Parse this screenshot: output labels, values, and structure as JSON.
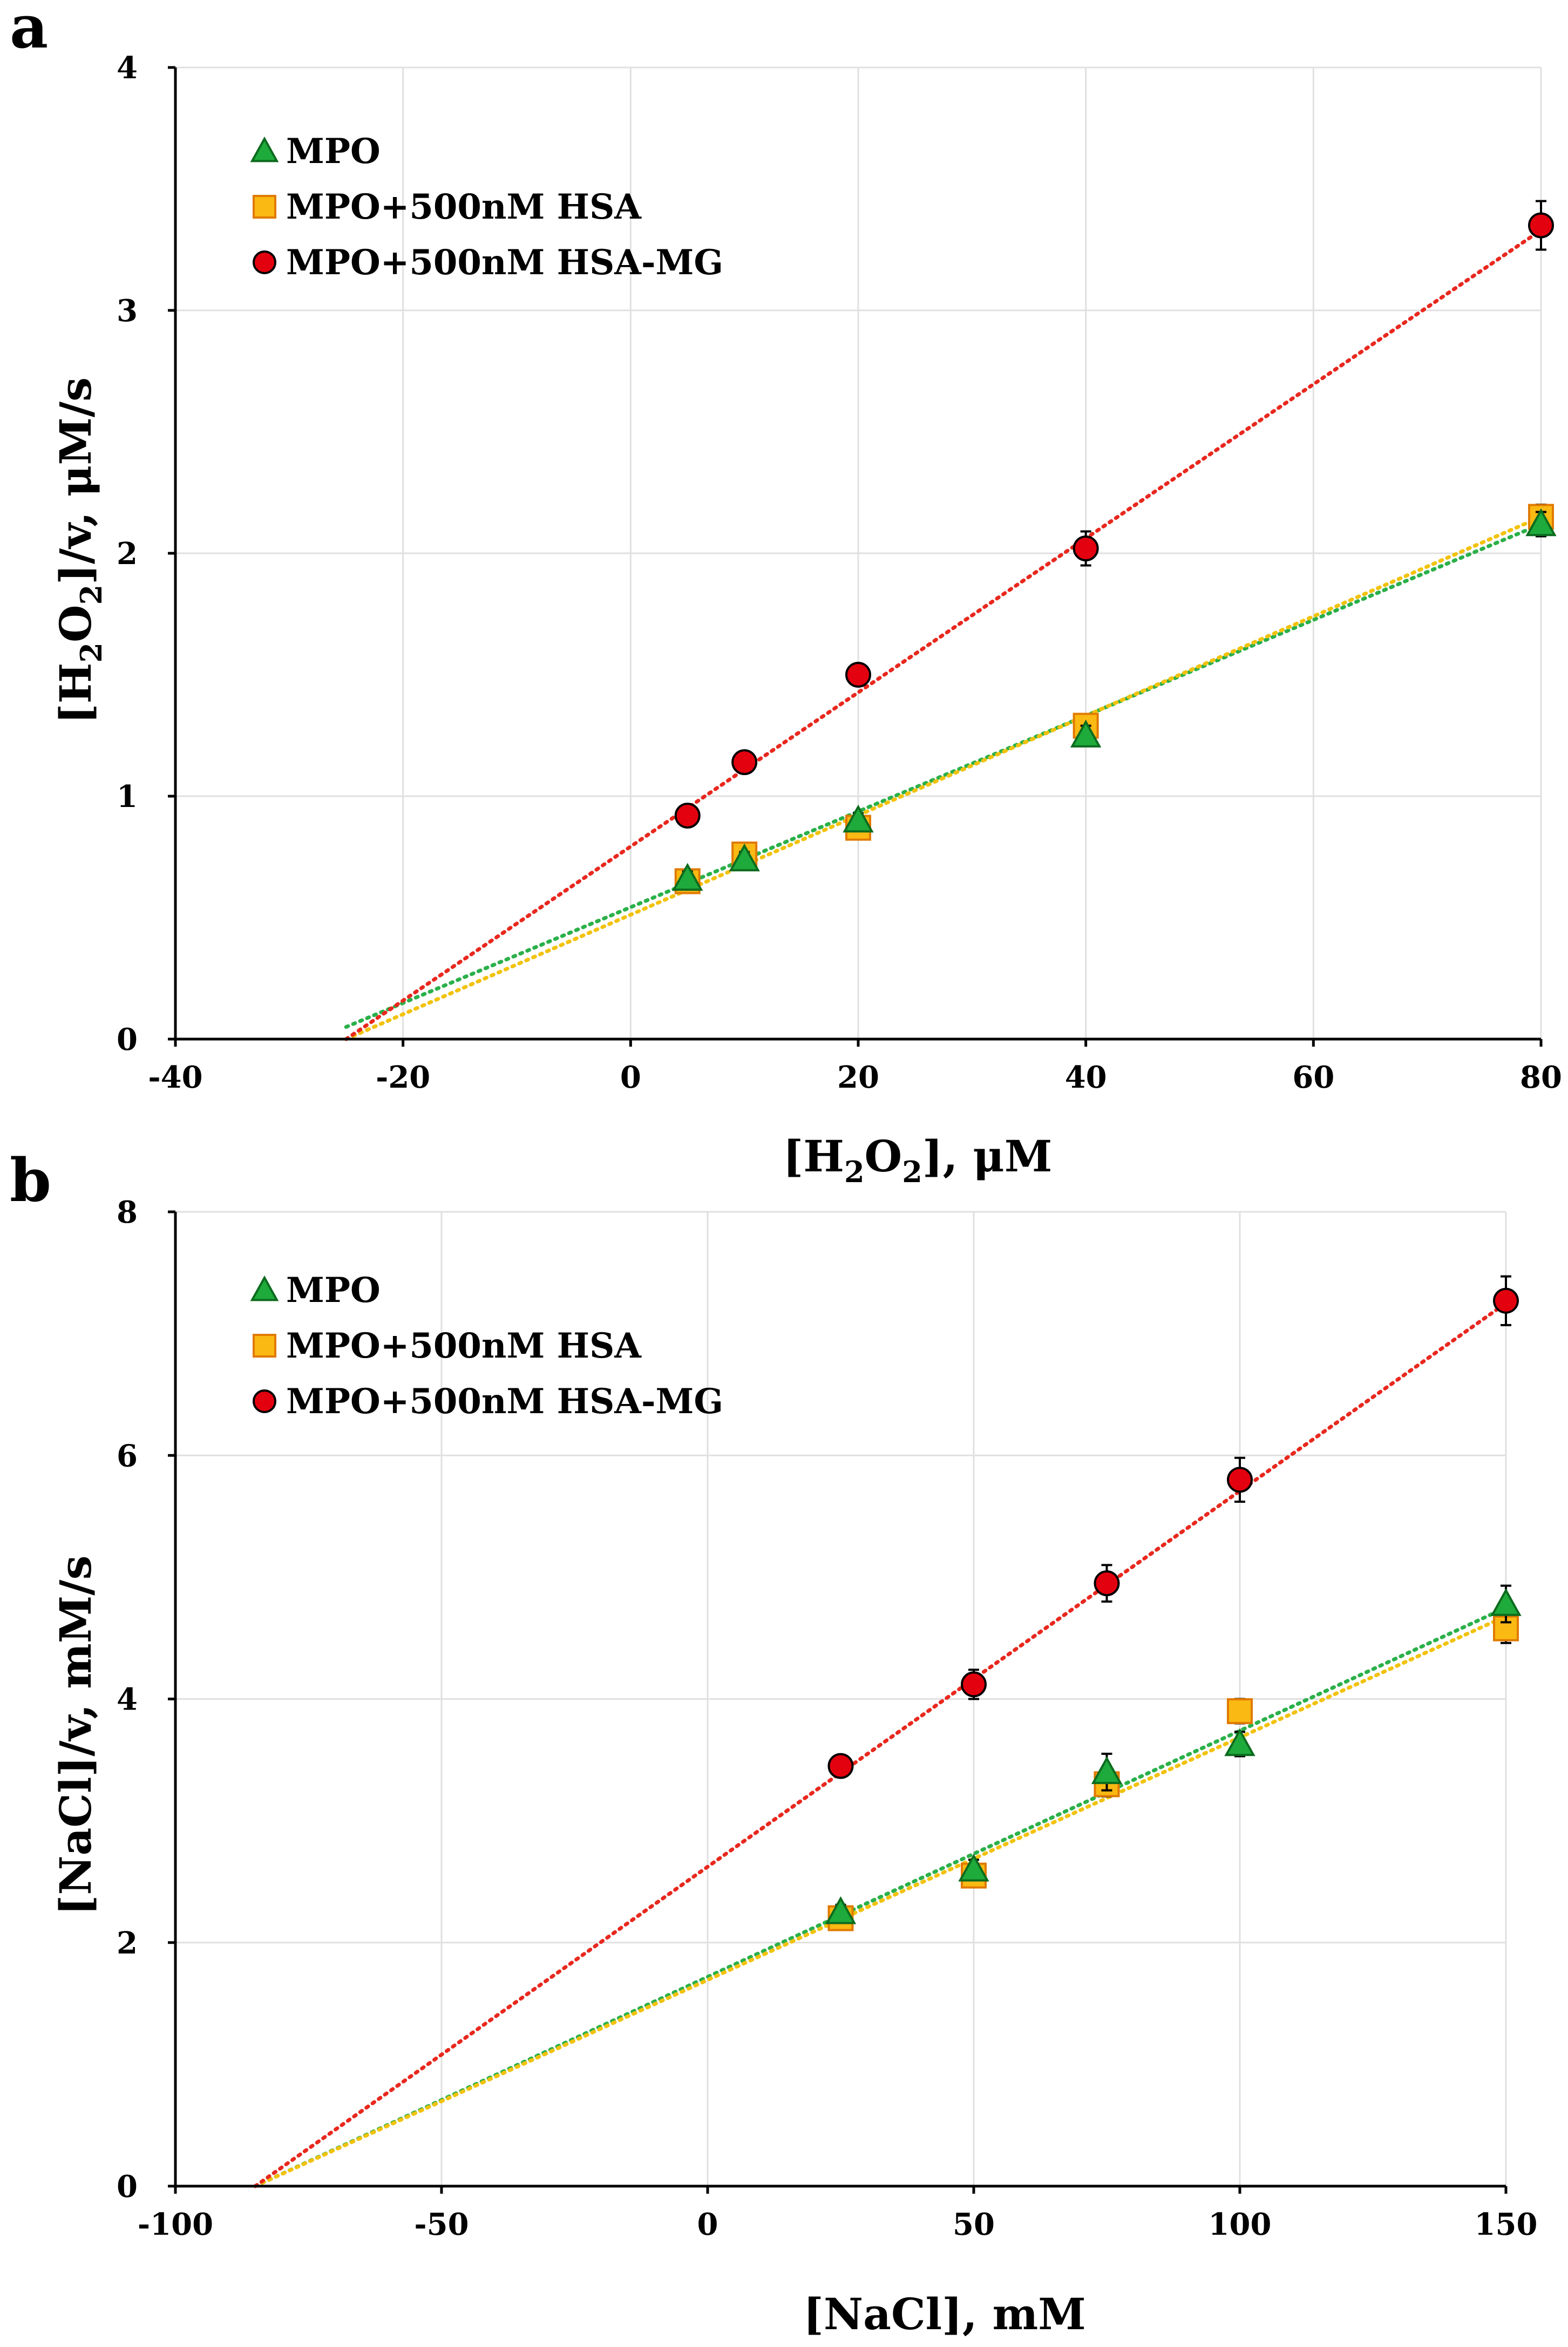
{
  "chart_data": [
    {
      "panel": "a",
      "type": "scatter",
      "xlabel": "[H2O2], μM",
      "ylabel": "[H2O2]/v, μM/s",
      "xlim": [
        -40,
        80
      ],
      "ylim": [
        0,
        4
      ],
      "xticks": [
        -40,
        -20,
        0,
        20,
        40,
        60,
        80
      ],
      "yticks": [
        0,
        1,
        2,
        3,
        4
      ],
      "grid": true,
      "legend_position": "top-left",
      "series": [
        {
          "name": "MPO",
          "marker": "triangle",
          "color": "#1faa3c",
          "trend_color": "#2bb04a",
          "x": [
            5,
            10,
            20,
            40,
            80
          ],
          "y": [
            0.66,
            0.74,
            0.9,
            1.25,
            2.12
          ],
          "err": [
            0.03,
            0.03,
            0.03,
            0.04,
            0.05
          ],
          "trend": {
            "x": [
              -25,
              80
            ],
            "y": [
              0.05,
              2.12
            ]
          }
        },
        {
          "name": "MPO+500nM HSA",
          "marker": "square",
          "color": "#fbb913",
          "trend_color": "#f2c20d",
          "x": [
            5,
            10,
            20,
            40,
            80
          ],
          "y": [
            0.65,
            0.76,
            0.87,
            1.29,
            2.15
          ],
          "err": [
            0.03,
            0.03,
            0.03,
            0.04,
            0.05
          ],
          "trend": {
            "x": [
              -25,
              80
            ],
            "y": [
              0.0,
              2.15
            ]
          }
        },
        {
          "name": "MPO+500nM HSA-MG",
          "marker": "circle",
          "color": "#e3000f",
          "trend_color": "#e8281e",
          "x": [
            5,
            10,
            20,
            40,
            80
          ],
          "y": [
            0.92,
            1.14,
            1.5,
            2.02,
            3.35
          ],
          "err": [
            0.03,
            0.03,
            0.03,
            0.07,
            0.1
          ],
          "trend": {
            "x": [
              -25,
              80
            ],
            "y": [
              0.0,
              3.33
            ]
          }
        }
      ]
    },
    {
      "panel": "b",
      "type": "scatter",
      "xlabel": "[NaCl], mM",
      "ylabel": "[NaCl]/v, mM/s",
      "xlim": [
        -100,
        150
      ],
      "ylim": [
        0,
        8
      ],
      "xticks": [
        -100,
        -50,
        0,
        50,
        100,
        150
      ],
      "yticks": [
        0,
        2,
        4,
        6,
        8
      ],
      "grid": true,
      "legend_position": "top-left",
      "series": [
        {
          "name": "MPO",
          "marker": "triangle",
          "color": "#1faa3c",
          "trend_color": "#2bb04a",
          "x": [
            25,
            50,
            75,
            100,
            150
          ],
          "y": [
            2.25,
            2.6,
            3.4,
            3.63,
            4.78
          ],
          "err": [
            0.06,
            0.08,
            0.15,
            0.1,
            0.15
          ],
          "trend": {
            "x": [
              -85,
              150
            ],
            "y": [
              0.0,
              4.75
            ]
          }
        },
        {
          "name": "MPO+500nM HSA",
          "marker": "square",
          "color": "#fbb913",
          "trend_color": "#f2c20d",
          "x": [
            25,
            50,
            75,
            100,
            150
          ],
          "y": [
            2.2,
            2.55,
            3.3,
            3.9,
            4.58
          ],
          "err": [
            0.06,
            0.08,
            0.1,
            0.1,
            0.12
          ],
          "trend": {
            "x": [
              -85,
              150
            ],
            "y": [
              0.0,
              4.68
            ]
          }
        },
        {
          "name": "MPO+500nM HSA-MG",
          "marker": "circle",
          "color": "#e3000f",
          "trend_color": "#e8281e",
          "x": [
            25,
            50,
            75,
            100,
            150
          ],
          "y": [
            3.45,
            4.12,
            4.95,
            5.8,
            7.27
          ],
          "err": [
            0.08,
            0.12,
            0.15,
            0.18,
            0.2
          ],
          "trend": {
            "x": [
              -85,
              150
            ],
            "y": [
              0.0,
              7.25
            ]
          }
        }
      ]
    }
  ],
  "panel_labels": {
    "a": "a",
    "b": "b"
  },
  "axis_titles": {
    "a_x": {
      "pre": "[H",
      "sub1": "2",
      "mid": "O",
      "sub2": "2",
      "post": "], μM"
    },
    "a_y": {
      "pre": "[H",
      "sub1": "2",
      "mid": "O",
      "sub2": "2",
      "post": "]/v, μM/s"
    },
    "b_x": "[NaCl], mM",
    "b_y": "[NaCl]/v, mM/s"
  }
}
